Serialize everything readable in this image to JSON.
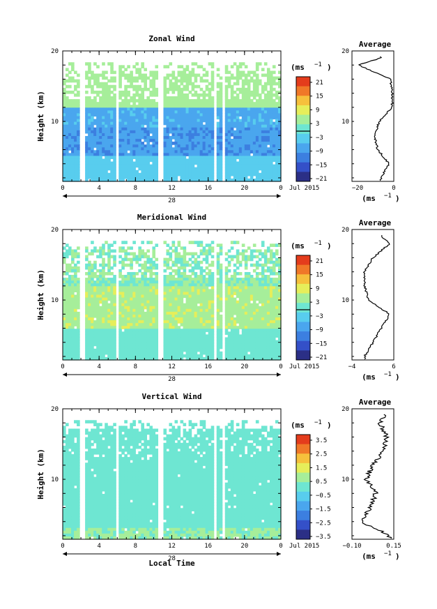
{
  "panels": [
    {
      "title": "Zonal Wind",
      "ylabel": "Height (km)",
      "yticks": [
        "10",
        "20"
      ],
      "xticks": [
        "0",
        "4",
        "8",
        "12",
        "16",
        "20",
        "0"
      ],
      "day": "28",
      "month": "Jul 2015",
      "unit": "(ms",
      "unit_exp": "−1",
      "cbar_labels": [
        "21",
        "15",
        "9",
        "3",
        "−3",
        "−9",
        "−15",
        "−21"
      ],
      "avg_title": "Average",
      "avg_xticks": [
        "−20",
        "0"
      ],
      "avg_xlabel": "(ms",
      "avg_yticks": [
        "10",
        "20"
      ]
    },
    {
      "title": "Meridional Wind",
      "ylabel": "Height (km)",
      "yticks": [
        "10",
        "20"
      ],
      "xticks": [
        "0",
        "4",
        "8",
        "12",
        "16",
        "20",
        "0"
      ],
      "day": "28",
      "month": "Jul 2015",
      "unit": "(ms",
      "unit_exp": "−1",
      "cbar_labels": [
        "21",
        "15",
        "9",
        "3",
        "−3",
        "−9",
        "−15",
        "−21"
      ],
      "avg_title": "Average",
      "avg_xticks": [
        "−4",
        "6"
      ],
      "avg_xlabel": "(ms",
      "avg_yticks": [
        "10",
        "20"
      ]
    },
    {
      "title": "Vertical Wind",
      "ylabel": "Height (km)",
      "yticks": [
        "10",
        "20"
      ],
      "xticks": [
        "0",
        "4",
        "8",
        "12",
        "16",
        "20",
        "0"
      ],
      "day": "28",
      "month": "Jul 2015",
      "unit": "(ms",
      "unit_exp": "−1",
      "cbar_labels": [
        "3.5",
        "2.5",
        "1.5",
        "0.5",
        "−0.5",
        "−1.5",
        "−2.5",
        "−3.5"
      ],
      "avg_title": "Average",
      "avg_xticks": [
        "−0.10",
        "0.15"
      ],
      "avg_xlabel": "(ms",
      "avg_yticks": [
        "10",
        "20"
      ],
      "xlabel": "Local Time"
    }
  ],
  "colors": {
    "cbar": [
      "#2b2f86",
      "#3450c8",
      "#3c7fe0",
      "#4aa6ee",
      "#58cdee",
      "#6ee6d2",
      "#a6ee9a",
      "#e6ee5a",
      "#f6c03c",
      "#f07828",
      "#e43c1c"
    ],
    "missing": "#ffffff",
    "frame": "#000000"
  },
  "chart_data": [
    {
      "type": "heatmap",
      "title": "Zonal Wind",
      "ylabel": "Height (km)",
      "xlabel": "",
      "xlim": [
        0,
        24
      ],
      "ylim": [
        1.5,
        20
      ],
      "colorbar_range": [
        -21,
        21
      ],
      "gaps_hours": [
        [
          2.0,
          2.4
        ],
        [
          5.8,
          6.1
        ],
        [
          10.5,
          11.0
        ],
        [
          16.5,
          16.9
        ],
        [
          17.4,
          17.9
        ]
      ],
      "profile_heights_km": [
        2,
        4,
        6,
        8,
        10,
        12,
        14,
        16,
        18,
        19
      ],
      "profile_values": [
        -8,
        -3,
        -10,
        -12,
        -9,
        -1,
        -1,
        -2,
        -22,
        -8
      ],
      "profile_xlim": [
        -26,
        0
      ]
    },
    {
      "type": "heatmap",
      "title": "Meridional Wind",
      "ylabel": "Height (km)",
      "xlabel": "",
      "xlim": [
        0,
        24
      ],
      "ylim": [
        1.5,
        20
      ],
      "colorbar_range": [
        -21,
        21
      ],
      "gaps_hours": [
        [
          2.0,
          2.4
        ],
        [
          5.8,
          6.1
        ],
        [
          10.5,
          11.0
        ],
        [
          16.5,
          16.9
        ],
        [
          17.4,
          17.9
        ]
      ],
      "profile_heights_km": [
        2,
        4,
        6,
        8,
        10,
        12,
        14,
        16,
        18,
        19
      ],
      "profile_values": [
        -1,
        1,
        3,
        5,
        0,
        -1,
        -1,
        1,
        5,
        3
      ],
      "profile_xlim": [
        -4,
        6
      ]
    },
    {
      "type": "heatmap",
      "title": "Vertical Wind",
      "ylabel": "Height (km)",
      "xlabel": "Local Time",
      "xlim": [
        0,
        24
      ],
      "ylim": [
        1.5,
        20
      ],
      "colorbar_range": [
        -3.5,
        3.5
      ],
      "gaps_hours": [
        [
          2.0,
          2.4
        ],
        [
          5.8,
          6.1
        ],
        [
          10.5,
          11.0
        ],
        [
          16.5,
          16.9
        ],
        [
          17.4,
          17.9
        ]
      ],
      "profile_heights_km": [
        2,
        4,
        6,
        8,
        10,
        12,
        14,
        16,
        18,
        19
      ],
      "profile_values": [
        0.12,
        -0.08,
        -0.02,
        0.02,
        -0.05,
        0.0,
        0.08,
        0.1,
        0.05,
        0.08
      ],
      "profile_xlim": [
        -0.15,
        0.15
      ]
    }
  ]
}
